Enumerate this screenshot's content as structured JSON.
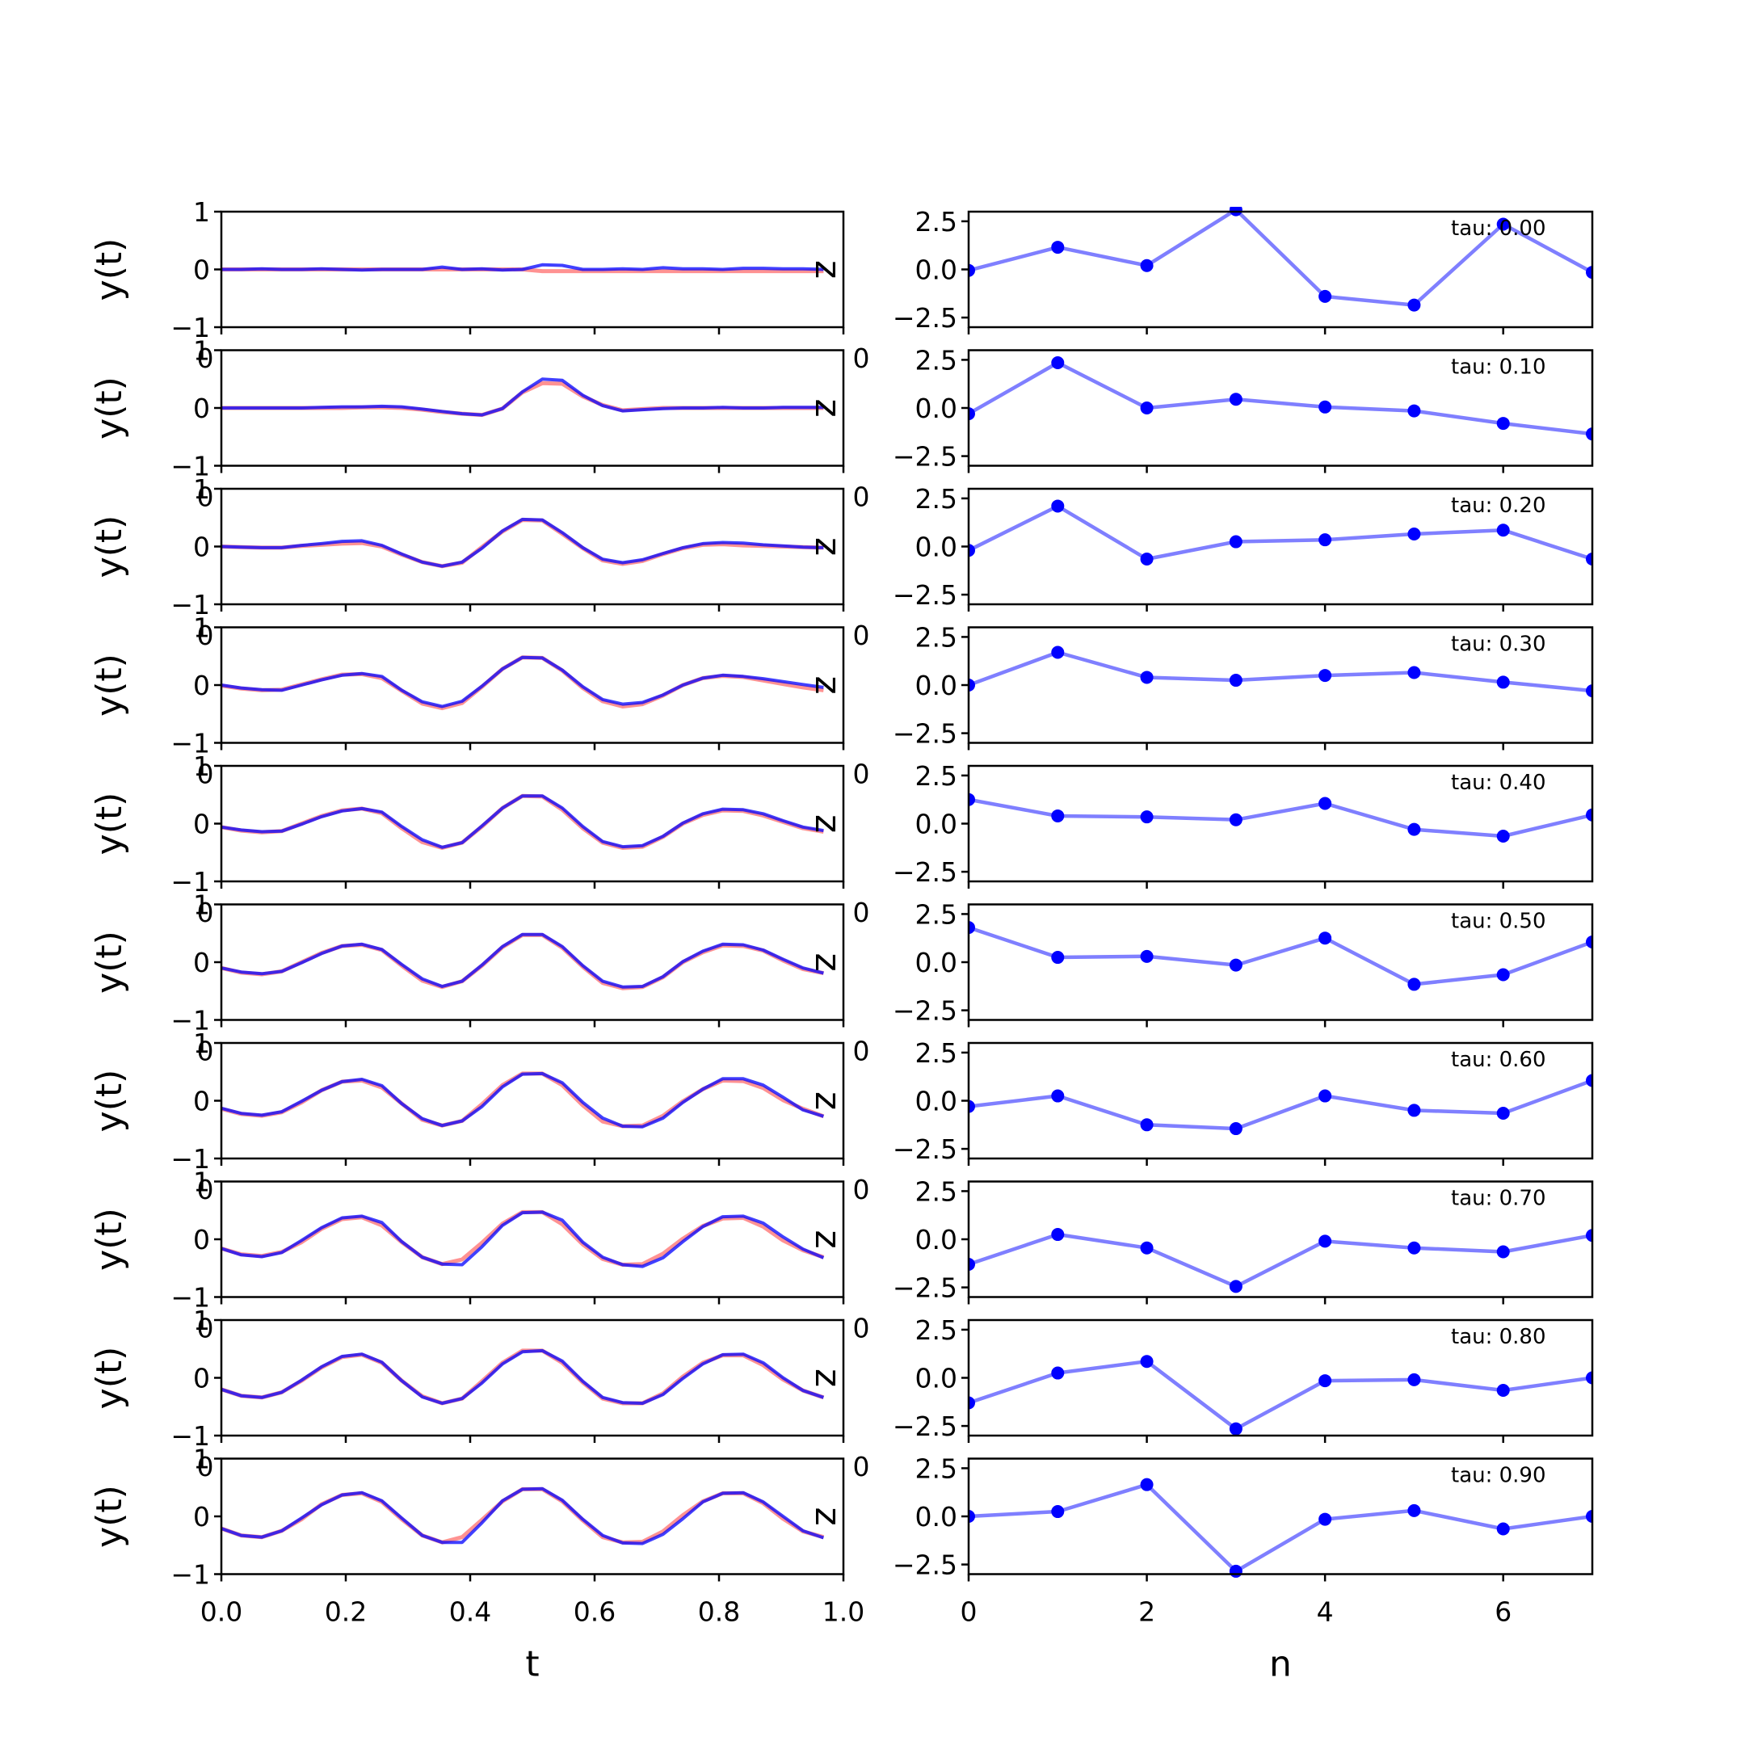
{
  "chart_data": [
    {
      "type": "line",
      "panel": "left-stack",
      "xlabel": "t",
      "ylabel": "y(t)",
      "xlim": [
        0.0,
        1.0
      ],
      "ylim": [
        -1,
        1
      ],
      "xticks": [
        "0.0",
        "0.2",
        "0.4",
        "0.6",
        "0.8",
        "1.0"
      ],
      "yticks": [
        "−1",
        "0",
        "1"
      ],
      "overlapping_tick_text": "0",
      "rotated_label": "z",
      "colors": {
        "target": "#ff7f7f",
        "prediction": "#0000ff"
      },
      "t": [
        0.0,
        0.032,
        0.065,
        0.097,
        0.129,
        0.161,
        0.194,
        0.226,
        0.258,
        0.29,
        0.323,
        0.355,
        0.387,
        0.419,
        0.452,
        0.484,
        0.516,
        0.548,
        0.581,
        0.613,
        0.645,
        0.677,
        0.71,
        0.742,
        0.774,
        0.806,
        0.839,
        0.871,
        0.903,
        0.935,
        0.968
      ],
      "rows": [
        {
          "tau": "tau: 0.00",
          "target": [
            0.0,
            0.0,
            0.0,
            0.0,
            0.0,
            0.0,
            0.0,
            0.0,
            0.0,
            0.0,
            0.0,
            0.0,
            0.0,
            0.0,
            0.0,
            0.0,
            -0.03,
            -0.03,
            -0.03,
            -0.03,
            -0.03,
            -0.03,
            -0.03,
            -0.03,
            -0.03,
            -0.03,
            -0.03,
            -0.03,
            -0.03,
            -0.03,
            -0.03
          ],
          "prediction": [
            0.0,
            0.0,
            0.01,
            0.0,
            0.0,
            0.01,
            0.0,
            -0.01,
            0.0,
            0.0,
            0.0,
            0.04,
            0.0,
            0.01,
            -0.01,
            0.0,
            0.08,
            0.07,
            0.0,
            0.0,
            0.01,
            0.0,
            0.03,
            0.01,
            0.01,
            0.0,
            0.02,
            0.02,
            0.01,
            0.01,
            0.0
          ]
        },
        {
          "tau": "tau: 0.10",
          "target": [
            0.0,
            0.0,
            0.0,
            0.0,
            0.0,
            0.0,
            0.0,
            0.01,
            0.01,
            0.0,
            -0.03,
            -0.07,
            -0.1,
            -0.12,
            -0.01,
            0.27,
            0.43,
            0.42,
            0.2,
            0.05,
            -0.04,
            -0.02,
            0.0,
            0.0,
            0.0,
            0.0,
            0.0,
            0.0,
            0.0,
            0.0,
            0.0
          ],
          "prediction": [
            0.0,
            0.0,
            0.0,
            0.0,
            0.0,
            0.01,
            0.02,
            0.02,
            0.03,
            0.02,
            -0.02,
            -0.06,
            -0.1,
            -0.12,
            -0.01,
            0.28,
            0.5,
            0.48,
            0.22,
            0.04,
            -0.05,
            -0.03,
            -0.01,
            0.0,
            0.0,
            0.01,
            0.0,
            0.0,
            0.01,
            0.01,
            0.01
          ]
        },
        {
          "tau": "tau: 0.20",
          "target": [
            0.0,
            -0.01,
            -0.02,
            -0.02,
            0.01,
            0.03,
            0.05,
            0.06,
            0.0,
            -0.14,
            -0.27,
            -0.34,
            -0.28,
            -0.01,
            0.26,
            0.46,
            0.45,
            0.22,
            -0.03,
            -0.24,
            -0.3,
            -0.25,
            -0.13,
            -0.03,
            0.03,
            0.04,
            0.02,
            0.01,
            0.0,
            -0.01,
            -0.02
          ],
          "prediction": [
            0.0,
            -0.01,
            -0.02,
            -0.02,
            0.02,
            0.05,
            0.09,
            0.1,
            0.02,
            -0.13,
            -0.27,
            -0.34,
            -0.27,
            -0.03,
            0.27,
            0.47,
            0.46,
            0.24,
            -0.02,
            -0.22,
            -0.28,
            -0.23,
            -0.12,
            -0.02,
            0.05,
            0.07,
            0.06,
            0.03,
            0.01,
            -0.01,
            -0.02
          ]
        },
        {
          "tau": "tau: 0.30",
          "target": [
            -0.01,
            -0.06,
            -0.09,
            -0.08,
            0.01,
            0.1,
            0.18,
            0.19,
            0.12,
            -0.1,
            -0.32,
            -0.4,
            -0.31,
            -0.03,
            0.28,
            0.48,
            0.47,
            0.25,
            -0.05,
            -0.28,
            -0.37,
            -0.33,
            -0.18,
            0.0,
            0.12,
            0.16,
            0.14,
            0.08,
            0.02,
            -0.04,
            -0.09
          ],
          "prediction": [
            0.0,
            -0.05,
            -0.08,
            -0.09,
            0.0,
            0.09,
            0.17,
            0.2,
            0.15,
            -0.09,
            -0.29,
            -0.37,
            -0.28,
            -0.02,
            0.28,
            0.48,
            0.47,
            0.26,
            -0.03,
            -0.25,
            -0.33,
            -0.3,
            -0.17,
            0.0,
            0.12,
            0.17,
            0.15,
            0.11,
            0.06,
            0.01,
            -0.04
          ]
        },
        {
          "tau": "tau: 0.40",
          "target": [
            -0.06,
            -0.12,
            -0.15,
            -0.13,
            0.0,
            0.13,
            0.23,
            0.26,
            0.18,
            -0.08,
            -0.32,
            -0.42,
            -0.33,
            -0.05,
            0.27,
            0.48,
            0.47,
            0.24,
            -0.08,
            -0.33,
            -0.42,
            -0.4,
            -0.23,
            0.0,
            0.15,
            0.23,
            0.22,
            0.14,
            0.03,
            -0.08,
            -0.14
          ],
          "prediction": [
            -0.06,
            -0.11,
            -0.14,
            -0.13,
            -0.01,
            0.12,
            0.22,
            0.26,
            0.2,
            -0.05,
            -0.28,
            -0.41,
            -0.33,
            -0.04,
            0.27,
            0.48,
            0.48,
            0.27,
            -0.05,
            -0.31,
            -0.4,
            -0.38,
            -0.22,
            0.01,
            0.17,
            0.25,
            0.24,
            0.17,
            0.05,
            -0.06,
            -0.12
          ]
        },
        {
          "tau": "tau: 0.50",
          "target": [
            -0.1,
            -0.18,
            -0.21,
            -0.16,
            0.0,
            0.16,
            0.28,
            0.3,
            0.21,
            -0.06,
            -0.32,
            -0.43,
            -0.33,
            -0.06,
            0.26,
            0.47,
            0.47,
            0.25,
            -0.08,
            -0.36,
            -0.45,
            -0.43,
            -0.26,
            0.0,
            0.17,
            0.29,
            0.28,
            0.2,
            0.03,
            -0.12,
            -0.19
          ],
          "prediction": [
            -0.1,
            -0.17,
            -0.2,
            -0.16,
            -0.01,
            0.15,
            0.28,
            0.31,
            0.22,
            -0.04,
            -0.29,
            -0.42,
            -0.33,
            -0.05,
            0.27,
            0.48,
            0.48,
            0.27,
            -0.06,
            -0.33,
            -0.43,
            -0.42,
            -0.25,
            0.01,
            0.19,
            0.31,
            0.3,
            0.21,
            0.05,
            -0.1,
            -0.19
          ]
        },
        {
          "tau": "tau: 0.60",
          "target": [
            -0.14,
            -0.23,
            -0.26,
            -0.2,
            -0.03,
            0.18,
            0.33,
            0.35,
            0.23,
            -0.05,
            -0.33,
            -0.43,
            -0.35,
            -0.06,
            0.27,
            0.47,
            0.47,
            0.27,
            -0.08,
            -0.36,
            -0.44,
            -0.43,
            -0.26,
            -0.01,
            0.2,
            0.35,
            0.34,
            0.22,
            0.01,
            -0.14,
            -0.27
          ],
          "prediction": [
            -0.13,
            -0.22,
            -0.25,
            -0.19,
            -0.01,
            0.18,
            0.33,
            0.37,
            0.26,
            -0.05,
            -0.31,
            -0.43,
            -0.35,
            -0.1,
            0.24,
            0.46,
            0.47,
            0.31,
            -0.03,
            -0.3,
            -0.44,
            -0.45,
            -0.3,
            -0.03,
            0.2,
            0.38,
            0.38,
            0.27,
            0.06,
            -0.16,
            -0.27
          ]
        },
        {
          "tau": "tau: 0.70",
          "target": [
            -0.16,
            -0.26,
            -0.29,
            -0.22,
            -0.05,
            0.18,
            0.35,
            0.38,
            0.24,
            -0.05,
            -0.31,
            -0.43,
            -0.35,
            -0.06,
            0.27,
            0.47,
            0.47,
            0.26,
            -0.09,
            -0.34,
            -0.44,
            -0.43,
            -0.25,
            0.01,
            0.23,
            0.36,
            0.37,
            0.22,
            -0.02,
            -0.19,
            -0.31
          ],
          "prediction": [
            -0.16,
            -0.27,
            -0.3,
            -0.23,
            -0.02,
            0.2,
            0.37,
            0.4,
            0.29,
            -0.04,
            -0.31,
            -0.43,
            -0.44,
            -0.13,
            0.24,
            0.46,
            0.47,
            0.33,
            -0.05,
            -0.31,
            -0.44,
            -0.47,
            -0.32,
            -0.04,
            0.22,
            0.39,
            0.4,
            0.28,
            0.04,
            -0.17,
            -0.32
          ]
        },
        {
          "tau": "tau: 0.80",
          "target": [
            -0.2,
            -0.31,
            -0.34,
            -0.25,
            -0.05,
            0.18,
            0.36,
            0.4,
            0.26,
            -0.05,
            -0.32,
            -0.44,
            -0.36,
            -0.06,
            0.26,
            0.47,
            0.47,
            0.26,
            -0.08,
            -0.36,
            -0.44,
            -0.44,
            -0.27,
            0.02,
            0.26,
            0.39,
            0.39,
            0.22,
            -0.03,
            -0.22,
            -0.34
          ],
          "prediction": [
            -0.2,
            -0.31,
            -0.34,
            -0.25,
            -0.04,
            0.19,
            0.37,
            0.41,
            0.27,
            -0.05,
            -0.33,
            -0.44,
            -0.36,
            -0.09,
            0.24,
            0.45,
            0.47,
            0.29,
            -0.06,
            -0.34,
            -0.43,
            -0.44,
            -0.29,
            -0.01,
            0.24,
            0.4,
            0.41,
            0.26,
            0.0,
            -0.22,
            -0.34
          ]
        },
        {
          "tau": "tau: 0.90",
          "target": [
            -0.21,
            -0.33,
            -0.36,
            -0.25,
            -0.05,
            0.21,
            0.37,
            0.4,
            0.25,
            -0.05,
            -0.33,
            -0.45,
            -0.36,
            -0.06,
            0.26,
            0.47,
            0.47,
            0.26,
            -0.07,
            -0.36,
            -0.45,
            -0.44,
            -0.26,
            0.02,
            0.26,
            0.4,
            0.4,
            0.23,
            -0.04,
            -0.26,
            -0.36
          ],
          "prediction": [
            -0.21,
            -0.33,
            -0.36,
            -0.25,
            -0.03,
            0.2,
            0.37,
            0.41,
            0.27,
            -0.03,
            -0.33,
            -0.45,
            -0.45,
            -0.11,
            0.27,
            0.47,
            0.48,
            0.28,
            -0.05,
            -0.33,
            -0.46,
            -0.47,
            -0.31,
            -0.04,
            0.25,
            0.4,
            0.41,
            0.25,
            0.0,
            -0.25,
            -0.37
          ]
        }
      ]
    },
    {
      "type": "line",
      "panel": "right-stack",
      "xlabel": "n",
      "ylabel": "",
      "xlim": [
        0,
        7
      ],
      "ylim": [
        -3,
        3
      ],
      "xticks": [
        "0",
        "2",
        "4",
        "6"
      ],
      "yticks": [
        "−2.5",
        "0.0",
        "2.5"
      ],
      "overlapping_tick_text": "0",
      "color": "#0000ff",
      "n": [
        0,
        1,
        2,
        3,
        4,
        5,
        6,
        7
      ],
      "series": [
        {
          "tau": "tau: 0.00",
          "values": [
            -0.05,
            1.15,
            0.2,
            3.1,
            -1.4,
            -1.85,
            2.35,
            -0.15
          ]
        },
        {
          "tau": "tau: 0.10",
          "values": [
            -0.3,
            2.35,
            0.0,
            0.45,
            0.05,
            -0.15,
            -0.8,
            -1.35
          ]
        },
        {
          "tau": "tau: 0.20",
          "values": [
            -0.2,
            2.1,
            -0.65,
            0.25,
            0.35,
            0.65,
            0.85,
            -0.65
          ]
        },
        {
          "tau": "tau: 0.30",
          "values": [
            0.0,
            1.7,
            0.4,
            0.25,
            0.5,
            0.65,
            0.15,
            -0.3
          ]
        },
        {
          "tau": "tau: 0.40",
          "values": [
            1.25,
            0.4,
            0.35,
            0.2,
            1.05,
            -0.3,
            -0.65,
            0.45
          ]
        },
        {
          "tau": "tau: 0.50",
          "values": [
            1.8,
            0.25,
            0.3,
            -0.15,
            1.25,
            -1.15,
            -0.65,
            1.05
          ]
        },
        {
          "tau": "tau: 0.60",
          "values": [
            -0.3,
            0.25,
            -1.25,
            -1.45,
            0.25,
            -0.5,
            -0.65,
            1.05
          ]
        },
        {
          "tau": "tau: 0.70",
          "values": [
            -1.3,
            0.25,
            -0.45,
            -2.45,
            -0.1,
            -0.45,
            -0.65,
            0.2
          ]
        },
        {
          "tau": "tau: 0.80",
          "values": [
            -1.3,
            0.25,
            0.85,
            -2.65,
            -0.15,
            -0.1,
            -0.65,
            0.0
          ]
        },
        {
          "tau": "tau: 0.90",
          "values": [
            0.0,
            0.25,
            1.65,
            -2.85,
            -0.15,
            0.3,
            -0.65,
            0.0
          ]
        }
      ]
    }
  ]
}
